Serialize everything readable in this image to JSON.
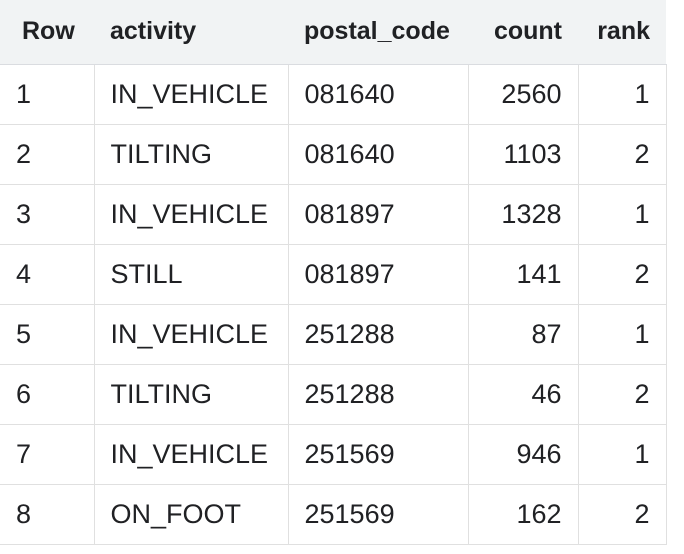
{
  "table": {
    "columns": [
      "Row",
      "activity",
      "postal_code",
      "count",
      "rank"
    ],
    "rows": [
      {
        "row": "1",
        "activity": "IN_VEHICLE",
        "postal_code": "081640",
        "count": "2560",
        "rank": "1"
      },
      {
        "row": "2",
        "activity": "TILTING",
        "postal_code": "081640",
        "count": "1103",
        "rank": "2"
      },
      {
        "row": "3",
        "activity": "IN_VEHICLE",
        "postal_code": "081897",
        "count": "1328",
        "rank": "1"
      },
      {
        "row": "4",
        "activity": "STILL",
        "postal_code": "081897",
        "count": "141",
        "rank": "2"
      },
      {
        "row": "5",
        "activity": "IN_VEHICLE",
        "postal_code": "251288",
        "count": "87",
        "rank": "1"
      },
      {
        "row": "6",
        "activity": "TILTING",
        "postal_code": "251288",
        "count": "46",
        "rank": "2"
      },
      {
        "row": "7",
        "activity": "IN_VEHICLE",
        "postal_code": "251569",
        "count": "946",
        "rank": "1"
      },
      {
        "row": "8",
        "activity": "ON_FOOT",
        "postal_code": "251569",
        "count": "162",
        "rank": "2"
      }
    ]
  },
  "colors": {
    "header_background": "#f1f3f4",
    "grid_line": "#e0e0e0",
    "text": "#202124"
  }
}
